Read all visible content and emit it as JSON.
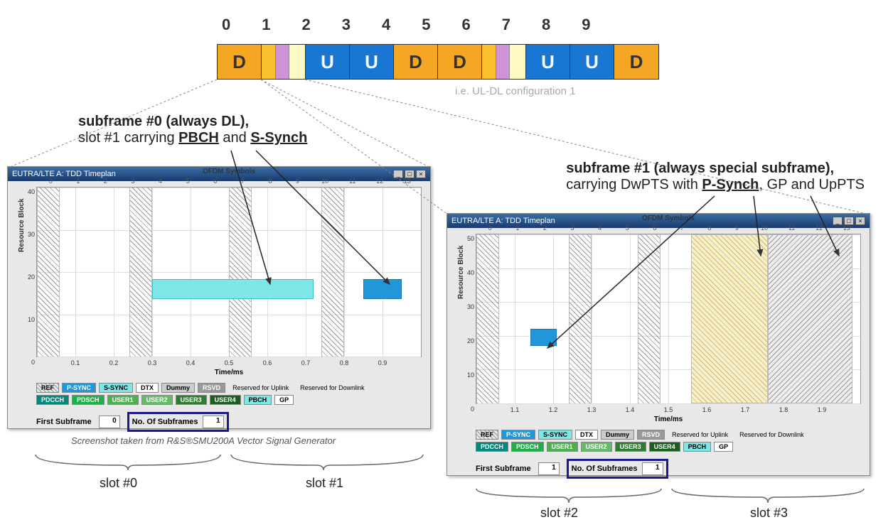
{
  "subframe_indices": [
    "0",
    "1",
    "2",
    "3",
    "4",
    "5",
    "6",
    "7",
    "8",
    "9"
  ],
  "subframe_types": [
    "D",
    "S",
    "U",
    "U",
    "D",
    "D",
    "S",
    "U",
    "U",
    "D"
  ],
  "config_note": "i.e. UL-DL configuration 1",
  "annotations": {
    "left_line1": "subframe #0 (always DL),",
    "left_line2a": "slot #1 carrying ",
    "left_line2b": "PBCH",
    "left_line2c": " and ",
    "left_line2d": "S-Synch",
    "right_line1": "subframe #1 (always special subframe),",
    "right_line2a": "carrying DwPTS with ",
    "right_line2b": "P-Synch",
    "right_line2c": ", GP and UpPTS"
  },
  "window_title": "EUTRA/LTE A: TDD Timeplan",
  "chart": {
    "top_axis_label": "OFDM Symbols",
    "x_axis_label": "Time/ms",
    "y_axis_label": "Resource Block",
    "top_ticks": [
      "0",
      "1",
      "2",
      "3",
      "4",
      "5",
      "6",
      "7",
      "8",
      "9",
      "10",
      "11",
      "12",
      "13"
    ],
    "left": {
      "y_ticks": [
        "0",
        "10",
        "20",
        "30",
        "40"
      ],
      "x_ticks": [
        "0.1",
        "0.2",
        "0.3",
        "0.4",
        "0.5",
        "0.6",
        "0.7",
        "0.8",
        "0.9"
      ],
      "hatch_columns_pct": [
        [
          0,
          6
        ],
        [
          24,
          6
        ],
        [
          50,
          6
        ],
        [
          74,
          6
        ]
      ],
      "pbch_block": {
        "left_pct": 30,
        "width_pct": 42,
        "top_pct": 54,
        "height_pct": 12,
        "color": "#7fe6e6"
      },
      "ssync_block": {
        "left_pct": 85,
        "width_pct": 10,
        "top_pct": 54,
        "height_pct": 12,
        "color": "#2196d8"
      }
    },
    "right": {
      "y_ticks": [
        "0",
        "10",
        "20",
        "30",
        "40",
        "50"
      ],
      "x_ticks": [
        "1.1",
        "1.2",
        "1.3",
        "1.4",
        "1.5",
        "1.6",
        "1.7",
        "1.8",
        "1.9"
      ],
      "hatch_columns_pct": [
        [
          0,
          6
        ],
        [
          24,
          6
        ],
        [
          42,
          6
        ]
      ],
      "yellow_zone_pct": [
        56,
        20
      ],
      "grey_zone_pct": [
        76,
        22
      ],
      "psync_block": {
        "left_pct": 14,
        "width_pct": 7,
        "top_pct": 56,
        "height_pct": 10,
        "color": "#2196d8"
      }
    }
  },
  "legend": {
    "row1": [
      {
        "label": "REF",
        "bg": "repeating-linear-gradient(45deg,#999 0,#999 1px,transparent 1px,transparent 4px)"
      },
      {
        "label": "P-SYNC",
        "bg": "#2196d8",
        "fg": "#fff"
      },
      {
        "label": "S-SYNC",
        "bg": "#7fe6e6"
      },
      {
        "label": "DTX",
        "bg": "#ffffff"
      },
      {
        "label": "Dummy",
        "bg": "#cccccc"
      },
      {
        "label": "RSVD",
        "bg": "#999999",
        "fg": "#fff"
      },
      {
        "label": "Reserved for Uplink",
        "bg": "transparent",
        "border": "none"
      },
      {
        "label": "Reserved for Downlink",
        "bg": "transparent",
        "border": "none"
      }
    ],
    "row2": [
      {
        "label": "PDCCH",
        "bg": "#00897b",
        "fg": "#fff"
      },
      {
        "label": "PDSCH",
        "bg": "#1bb146",
        "fg": "#fff"
      },
      {
        "label": "USER1",
        "bg": "#4caf50",
        "fg": "#fff"
      },
      {
        "label": "USER2",
        "bg": "#66bb6a",
        "fg": "#fff"
      },
      {
        "label": "USER3",
        "bg": "#2e7d32",
        "fg": "#fff"
      },
      {
        "label": "USER4",
        "bg": "#1b5e20",
        "fg": "#fff"
      },
      {
        "label": "PBCH",
        "bg": "#7fe6e6"
      },
      {
        "label": "GP",
        "bg": "#ffffff"
      }
    ]
  },
  "settings": {
    "first_subframe_label": "First Subframe",
    "num_subframes_label": "No. Of Subframes",
    "left_first": "0",
    "right_first": "1",
    "num": "1"
  },
  "credit": "Screenshot taken from R&S®SMU200A Vector Signal Generator",
  "slots": {
    "s0": "slot #0",
    "s1": "slot #1",
    "s2": "slot #2",
    "s3": "slot #3"
  },
  "colors": {
    "d_bg": "#f5a623",
    "u_bg": "#1976d2",
    "sp1": "#fbc02d",
    "sp2": "#ce93d8",
    "sp3": "#fff9c4",
    "titlebar_grad": "linear-gradient(to bottom,#3a6ea5,#1a3a6e)",
    "highlight_border": "#1a1a8e"
  }
}
